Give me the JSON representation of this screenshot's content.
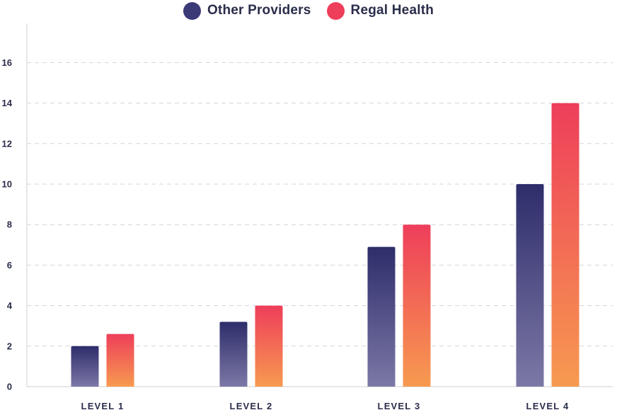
{
  "chart_data": {
    "type": "bar",
    "categories": [
      "LEVEL 1",
      "LEVEL 2",
      "LEVEL 3",
      "LEVEL 4"
    ],
    "series": [
      {
        "name": "Other Providers",
        "values": [
          2.0,
          3.2,
          6.9,
          10.0
        ],
        "color_top": "#2e2d6b",
        "color_bottom": "#7c78a6"
      },
      {
        "name": "Regal Health",
        "values": [
          2.6,
          4.0,
          8.0,
          14.0
        ],
        "color_top": "#ee3e5a",
        "color_bottom": "#f79a50"
      }
    ],
    "legend": {
      "position": "top-center",
      "colors": [
        "#3b3a78",
        "#ee3e5a"
      ]
    },
    "title": "",
    "xlabel": "",
    "ylabel": "",
    "ylim": [
      0,
      18
    ],
    "yticks": [
      0,
      2,
      4,
      6,
      8,
      10,
      12,
      14,
      16
    ],
    "grid": true,
    "grid_color": "#d6d6d6",
    "axis_color": "#cfcfcf"
  }
}
